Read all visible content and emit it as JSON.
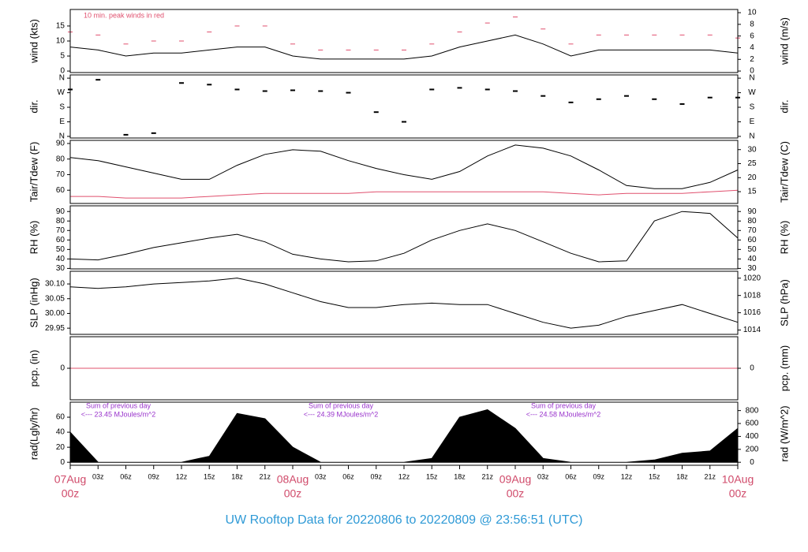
{
  "title": "UW Rooftop Data for 20220806  to  20220809 @ 23:56:51  (UTC)",
  "chart_data": [
    {
      "type": "line",
      "ylabel": "wind (kts)",
      "y2label": "wind (m/s)",
      "annotation": "10 min. peak winds in red",
      "xlim": [
        0,
        72
      ],
      "ylim": [
        -0.5,
        20.5
      ],
      "yticks": [
        0,
        5,
        10,
        15
      ],
      "y2lim": [
        -0.26,
        10.55
      ],
      "y2ticks": [
        0,
        2,
        4,
        6,
        8,
        10
      ],
      "x": [
        0,
        3,
        6,
        9,
        12,
        15,
        18,
        21,
        24,
        27,
        30,
        33,
        36,
        39,
        42,
        45,
        48,
        51,
        54,
        57,
        60,
        63,
        66,
        69,
        72
      ],
      "series": [
        {
          "name": "wind",
          "color": "#000000",
          "style": "line",
          "values": [
            8,
            7,
            5,
            6,
            6,
            7,
            8,
            8,
            5,
            4,
            4,
            4,
            4,
            5,
            8,
            10,
            12,
            9,
            5,
            7,
            7,
            7,
            7,
            7,
            6
          ]
        },
        {
          "name": "peak",
          "color": "#e0506e",
          "style": "dash",
          "values": [
            13,
            12,
            9,
            10,
            10,
            13,
            15,
            15,
            9,
            7,
            7,
            7,
            7,
            9,
            13,
            16,
            18,
            14,
            9,
            12,
            12,
            12,
            12,
            12,
            11
          ]
        }
      ]
    },
    {
      "type": "scatter",
      "ylabel": "dir.",
      "y2label": "dir.",
      "xlim": [
        0,
        72
      ],
      "ylim": [
        -10,
        380
      ],
      "yticks": [
        {
          "value": 0,
          "label": "N"
        },
        {
          "value": 90,
          "label": "E"
        },
        {
          "value": 180,
          "label": "S"
        },
        {
          "value": 270,
          "label": "W"
        },
        {
          "value": 360,
          "label": "N"
        }
      ],
      "y2lim": [
        -10,
        380
      ],
      "y2ticks": [
        {
          "value": 0,
          "label": "N"
        },
        {
          "value": 90,
          "label": "E"
        },
        {
          "value": 180,
          "label": "S"
        },
        {
          "value": 270,
          "label": "W"
        },
        {
          "value": 360,
          "label": "N"
        }
      ],
      "x": [
        0,
        3,
        6,
        9,
        12,
        15,
        18,
        21,
        24,
        27,
        30,
        33,
        36,
        39,
        42,
        45,
        48,
        51,
        54,
        57,
        60,
        63,
        66,
        69,
        72
      ],
      "series": [
        {
          "name": "dir",
          "color": "#000000",
          "values": [
            290,
            350,
            10,
            20,
            330,
            320,
            290,
            280,
            285,
            280,
            270,
            150,
            90,
            290,
            300,
            290,
            280,
            250,
            210,
            230,
            250,
            230,
            200,
            240,
            240
          ]
        }
      ]
    },
    {
      "type": "line",
      "ylabel": "Tair/Tdew (F)",
      "y2label": "Tair/Tdew (C)",
      "xlim": [
        0,
        72
      ],
      "ylim": [
        51.5,
        92
      ],
      "yticks": [
        60,
        70,
        80,
        90
      ],
      "y2lim": [
        10.8,
        33.3
      ],
      "y2ticks": [
        15,
        20,
        25,
        30
      ],
      "x": [
        0,
        3,
        6,
        9,
        12,
        15,
        18,
        21,
        24,
        27,
        30,
        33,
        36,
        39,
        42,
        45,
        48,
        51,
        54,
        57,
        60,
        63,
        66,
        69,
        72
      ],
      "series": [
        {
          "name": "Tair",
          "color": "#000000",
          "style": "line",
          "values": [
            81,
            79,
            75,
            71,
            67,
            67,
            76,
            83,
            86,
            85,
            79,
            74,
            70,
            67,
            72,
            82,
            89,
            87,
            82,
            73,
            63,
            61,
            61,
            65,
            73
          ]
        },
        {
          "name": "Tdew",
          "color": "#e0506e",
          "style": "line",
          "values": [
            56,
            56,
            55,
            55,
            55,
            56,
            57,
            58,
            58,
            58,
            58,
            59,
            59,
            59,
            59,
            59,
            59,
            59,
            58,
            57,
            58,
            58,
            58,
            59,
            60
          ]
        }
      ]
    },
    {
      "type": "line",
      "ylabel": "RH (%)",
      "y2label": "RH (%)",
      "xlim": [
        0,
        72
      ],
      "ylim": [
        29.5,
        96
      ],
      "yticks": [
        30,
        40,
        50,
        60,
        70,
        80,
        90
      ],
      "y2lim": [
        29.5,
        96
      ],
      "y2ticks": [
        30,
        40,
        50,
        60,
        70,
        80,
        90
      ],
      "x": [
        0,
        3,
        6,
        9,
        12,
        15,
        18,
        21,
        24,
        27,
        30,
        33,
        36,
        39,
        42,
        45,
        48,
        51,
        54,
        57,
        60,
        63,
        66,
        69,
        72
      ],
      "series": [
        {
          "name": "RH",
          "color": "#000000",
          "style": "line",
          "values": [
            40,
            39,
            45,
            52,
            57,
            62,
            66,
            58,
            45,
            40,
            37,
            38,
            46,
            60,
            70,
            77,
            70,
            58,
            46,
            37,
            38,
            80,
            90,
            88,
            62
          ]
        }
      ]
    },
    {
      "type": "line",
      "ylabel": "SLP (inHg)",
      "y2label": "SLP (hPa)",
      "xlim": [
        0,
        72
      ],
      "ylim": [
        29.929,
        30.143
      ],
      "yticks": [
        {
          "value": 29.95,
          "label": "29.95"
        },
        {
          "value": 30.0,
          "label": "30.00"
        },
        {
          "value": 30.05,
          "label": "30.05"
        },
        {
          "value": 30.1,
          "label": "30.10"
        }
      ],
      "y2lim": [
        1013.5,
        1020.8
      ],
      "y2ticks": [
        1014,
        1016,
        1018,
        1020
      ],
      "x": [
        0,
        3,
        6,
        9,
        12,
        15,
        18,
        21,
        24,
        27,
        30,
        33,
        36,
        39,
        42,
        45,
        48,
        51,
        54,
        57,
        60,
        63,
        66,
        69,
        72
      ],
      "series": [
        {
          "name": "SLP",
          "color": "#000000",
          "style": "line",
          "values": [
            30.09,
            30.085,
            30.09,
            30.1,
            30.105,
            30.11,
            30.12,
            30.1,
            30.07,
            30.04,
            30.02,
            30.02,
            30.03,
            30.035,
            30.03,
            30.03,
            30.0,
            29.97,
            29.95,
            29.96,
            29.99,
            30.01,
            30.03,
            30.0,
            29.97
          ]
        }
      ]
    },
    {
      "type": "line",
      "ylabel": "pcp. (in)",
      "y2label": "pcp. (mm)",
      "xlim": [
        0,
        72
      ],
      "ylim": [
        -1,
        1
      ],
      "yticks": [
        0
      ],
      "y2lim": [
        -25.4,
        25.4
      ],
      "y2ticks": [
        0
      ],
      "x": [
        0,
        3,
        6,
        9,
        12,
        15,
        18,
        21,
        24,
        27,
        30,
        33,
        36,
        39,
        42,
        45,
        48,
        51,
        54,
        57,
        60,
        63,
        66,
        69,
        72
      ],
      "series": [
        {
          "name": "pcp",
          "color": "#e0506e",
          "style": "line",
          "values": [
            0,
            0,
            0,
            0,
            0,
            0,
            0,
            0,
            0,
            0,
            0,
            0,
            0,
            0,
            0,
            0,
            0,
            0,
            0,
            0,
            0,
            0,
            0,
            0,
            0
          ]
        }
      ]
    },
    {
      "type": "area",
      "ylabel": "rad(Lgly/hr)",
      "y2label": "rad (W/m^2)",
      "xlim": [
        0,
        72
      ],
      "ylim": [
        -4,
        80
      ],
      "yticks": [
        0,
        20,
        40,
        60
      ],
      "y2lim": [
        -46.5,
        930
      ],
      "y2ticks": [
        0,
        200,
        400,
        600,
        800
      ],
      "daily_sums": [
        [
          "Sum of previous day",
          "<--- 23.45 MJoules/m^2"
        ],
        [
          "Sum of previous day",
          "<--- 24.39 MJoules/m^2"
        ],
        [
          "Sum of previous day",
          "<--- 24.58 MJoules/m^2"
        ]
      ],
      "xticks": [
        {
          "value": 0,
          "label": "00z"
        },
        {
          "value": 3,
          "label": "03z"
        },
        {
          "value": 6,
          "label": "06z"
        },
        {
          "value": 9,
          "label": "09z"
        },
        {
          "value": 12,
          "label": "12z"
        },
        {
          "value": 15,
          "label": "15z"
        },
        {
          "value": 18,
          "label": "18z"
        },
        {
          "value": 21,
          "label": "21z"
        },
        {
          "value": 24,
          "label": "00z"
        },
        {
          "value": 27,
          "label": "03z"
        },
        {
          "value": 30,
          "label": "06z"
        },
        {
          "value": 33,
          "label": "09z"
        },
        {
          "value": 36,
          "label": "12z"
        },
        {
          "value": 39,
          "label": "15z"
        },
        {
          "value": 42,
          "label": "18z"
        },
        {
          "value": 45,
          "label": "21z"
        },
        {
          "value": 48,
          "label": "00z"
        },
        {
          "value": 51,
          "label": "03z"
        },
        {
          "value": 54,
          "label": "06z"
        },
        {
          "value": 57,
          "label": "09z"
        },
        {
          "value": 60,
          "label": "12z"
        },
        {
          "value": 63,
          "label": "15z"
        },
        {
          "value": 66,
          "label": "18z"
        },
        {
          "value": 69,
          "label": "21z"
        },
        {
          "value": 72,
          "label": "00z"
        }
      ],
      "day_labels": [
        {
          "value": 0,
          "label": "07Aug"
        },
        {
          "value": 24,
          "label": "08Aug"
        },
        {
          "value": 48,
          "label": "09Aug"
        },
        {
          "value": 72,
          "label": "10Aug"
        }
      ],
      "x": [
        0,
        3,
        6,
        9,
        12,
        15,
        18,
        21,
        24,
        27,
        30,
        33,
        36,
        39,
        42,
        45,
        48,
        51,
        54,
        57,
        60,
        63,
        66,
        69,
        72
      ],
      "series": [
        {
          "name": "rad",
          "color": "#000000",
          "values": [
            40,
            0,
            0,
            0,
            0,
            8,
            65,
            58,
            20,
            0,
            0,
            0,
            0,
            5,
            60,
            70,
            45,
            5,
            0,
            0,
            0,
            3,
            12,
            15,
            45
          ]
        }
      ]
    }
  ]
}
